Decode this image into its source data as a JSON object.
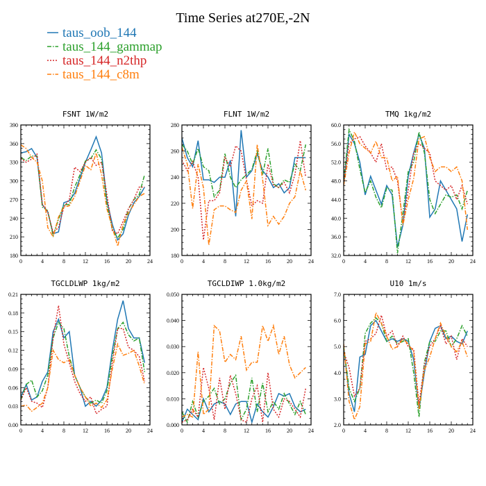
{
  "title": "Time Series at270E,-2N",
  "legend": [
    {
      "name": "taus_oob_144",
      "color": "#1f77b4",
      "dash": "solid"
    },
    {
      "name": "taus_144_gammap",
      "color": "#2ca02c",
      "dash": "dashdot"
    },
    {
      "name": "taus_144_n2thp",
      "color": "#d62728",
      "dash": "dot"
    },
    {
      "name": "taus_144_c8m",
      "color": "#ff7f0e",
      "dash": "dashdot"
    }
  ],
  "chart_data": [
    {
      "type": "line",
      "title": "FSNT   1W/m2",
      "xlim": [
        0,
        24
      ],
      "xticks": [
        "0",
        "4",
        "8",
        "12",
        "16",
        "20",
        "24"
      ],
      "ylim": [
        180,
        390
      ],
      "yticks": [
        "180",
        "210",
        "240",
        "270",
        "300",
        "330",
        "360",
        "390"
      ],
      "x": [
        0,
        1,
        2,
        3,
        4,
        5,
        6,
        7,
        8,
        9,
        10,
        11,
        12,
        13,
        14,
        15,
        16,
        17,
        18,
        19,
        20,
        21,
        22,
        23
      ],
      "series": [
        {
          "name": "taus_oob_144",
          "values": [
            345,
            347,
            352,
            338,
            262,
            250,
            215,
            218,
            265,
            268,
            280,
            305,
            330,
            350,
            371,
            345,
            268,
            230,
            205,
            215,
            245,
            265,
            275,
            290
          ]
        },
        {
          "name": "taus_144_gammap",
          "values": [
            337,
            333,
            340,
            340,
            258,
            252,
            212,
            238,
            262,
            262,
            290,
            310,
            332,
            336,
            350,
            335,
            262,
            222,
            208,
            222,
            255,
            270,
            278,
            310
          ]
        },
        {
          "name": "taus_144_n2thp",
          "values": [
            336,
            330,
            335,
            343,
            262,
            250,
            217,
            225,
            258,
            270,
            322,
            315,
            330,
            338,
            325,
            330,
            278,
            220,
            215,
            235,
            255,
            270,
            290,
            290
          ]
        },
        {
          "name": "taus_144_c8m",
          "values": [
            358,
            352,
            338,
            330,
            300,
            225,
            210,
            242,
            258,
            260,
            275,
            300,
            325,
            318,
            345,
            310,
            255,
            225,
            195,
            230,
            248,
            262,
            275,
            280
          ]
        }
      ]
    },
    {
      "type": "line",
      "title": "FLNT   1W/m2",
      "xlim": [
        0,
        24
      ],
      "xticks": [
        "0",
        "4",
        "8",
        "12",
        "16",
        "20",
        "24"
      ],
      "ylim": [
        180,
        280
      ],
      "yticks": [
        "180",
        "200",
        "220",
        "240",
        "260",
        "280"
      ],
      "x": [
        0,
        1,
        2,
        3,
        4,
        5,
        6,
        7,
        8,
        9,
        10,
        11,
        12,
        13,
        14,
        15,
        16,
        17,
        18,
        19,
        20,
        21,
        22,
        23
      ],
      "series": [
        {
          "name": "taus_oob_144",
          "values": [
            270,
            255,
            248,
            268,
            238,
            238,
            236,
            240,
            240,
            253,
            210,
            276,
            240,
            245,
            258,
            245,
            240,
            232,
            235,
            228,
            232,
            255,
            255,
            255
          ]
        },
        {
          "name": "taus_144_gammap",
          "values": [
            265,
            260,
            250,
            262,
            248,
            245,
            225,
            230,
            258,
            240,
            232,
            238,
            242,
            246,
            260,
            242,
            262,
            235,
            232,
            238,
            236,
            250,
            245,
            265
          ]
        },
        {
          "name": "taus_144_n2thp",
          "values": [
            253,
            245,
            252,
            240,
            192,
            222,
            222,
            228,
            255,
            248,
            264,
            260,
            238,
            218,
            222,
            220,
            250,
            234,
            232,
            236,
            228,
            242,
            268,
            240
          ]
        },
        {
          "name": "taus_144_c8m",
          "values": [
            263,
            250,
            216,
            250,
            232,
            188,
            215,
            218,
            218,
            215,
            213,
            230,
            237,
            208,
            265,
            238,
            203,
            210,
            204,
            210,
            220,
            225,
            245,
            230
          ]
        }
      ]
    },
    {
      "type": "line",
      "title": "TMQ   1kg/m2",
      "xlim": [
        0,
        24
      ],
      "xticks": [
        "0",
        "4",
        "8",
        "12",
        "16",
        "20",
        "24"
      ],
      "ylim": [
        32.0,
        60.0
      ],
      "yticks": [
        "32.0",
        "36.0",
        "40.0",
        "44.0",
        "48.0",
        "52.0",
        "56.0",
        "60.0"
      ],
      "x": [
        0,
        1,
        2,
        3,
        4,
        5,
        6,
        7,
        8,
        9,
        10,
        11,
        12,
        13,
        14,
        15,
        16,
        17,
        18,
        19,
        20,
        21,
        22,
        23
      ],
      "series": [
        {
          "name": "taus_oob_144",
          "values": [
            47.0,
            58.0,
            56.0,
            52.0,
            45.0,
            49.0,
            46.0,
            43.0,
            47.0,
            45.0,
            33.8,
            38.5,
            49.0,
            54.0,
            58.0,
            55.0,
            40.2,
            42.0,
            48.0,
            46.0,
            44.0,
            42.0,
            35.0,
            40.8
          ]
        },
        {
          "name": "taus_144_gammap",
          "values": [
            48.0,
            59.0,
            56.5,
            50.5,
            45.5,
            48.0,
            44.5,
            42.2,
            46.5,
            46.0,
            32.5,
            41.0,
            50.0,
            52.0,
            58.5,
            54.0,
            44.0,
            41.0,
            43.0,
            45.0,
            44.5,
            45.0,
            42.0,
            46.0
          ]
        },
        {
          "name": "taus_144_n2thp",
          "values": [
            47.5,
            56.0,
            57.0,
            57.5,
            55.5,
            54.0,
            52.0,
            56.0,
            50.5,
            51.0,
            48.0,
            39.0,
            46.0,
            54.0,
            56.0,
            55.0,
            54.0,
            48.0,
            47.0,
            46.0,
            47.0,
            44.0,
            47.0,
            43.0
          ]
        },
        {
          "name": "taus_144_c8m",
          "values": [
            47.0,
            54.0,
            58.5,
            56.0,
            55.0,
            54.0,
            56.5,
            53.0,
            53.0,
            48.0,
            49.0,
            38.5,
            44.0,
            48.5,
            57.0,
            57.5,
            53.0,
            50.0,
            51.0,
            51.0,
            50.0,
            51.0,
            48.0,
            37.5
          ]
        }
      ]
    },
    {
      "type": "line",
      "title": "TGCLDLWP   1kg/m2",
      "xlim": [
        0,
        24
      ],
      "xticks": [
        "0",
        "4",
        "8",
        "12",
        "16",
        "20",
        "24"
      ],
      "ylim": [
        0.0,
        0.21
      ],
      "yticks": [
        "0.00",
        "0.03",
        "0.06",
        "0.09",
        "0.12",
        "0.15",
        "0.18",
        "0.21"
      ],
      "x": [
        0,
        1,
        2,
        3,
        4,
        5,
        6,
        7,
        8,
        9,
        10,
        11,
        12,
        13,
        14,
        15,
        16,
        17,
        18,
        19,
        20,
        21,
        22,
        23
      ],
      "series": [
        {
          "name": "taus_oob_144",
          "values": [
            0.045,
            0.065,
            0.04,
            0.045,
            0.07,
            0.085,
            0.15,
            0.17,
            0.14,
            0.15,
            0.08,
            0.06,
            0.03,
            0.038,
            0.03,
            0.04,
            0.06,
            0.12,
            0.17,
            0.2,
            0.155,
            0.14,
            0.14,
            0.1
          ]
        },
        {
          "name": "taus_144_gammap",
          "values": [
            0.04,
            0.065,
            0.072,
            0.045,
            0.055,
            0.08,
            0.14,
            0.165,
            0.155,
            0.11,
            0.08,
            0.06,
            0.045,
            0.035,
            0.04,
            0.035,
            0.055,
            0.11,
            0.155,
            0.165,
            0.145,
            0.135,
            0.14,
            0.085
          ]
        },
        {
          "name": "taus_144_n2thp",
          "values": [
            0.04,
            0.06,
            0.038,
            0.035,
            0.028,
            0.06,
            0.14,
            0.192,
            0.13,
            0.1,
            0.07,
            0.05,
            0.038,
            0.045,
            0.018,
            0.025,
            0.03,
            0.1,
            0.155,
            0.155,
            0.125,
            0.12,
            0.11,
            0.07
          ]
        },
        {
          "name": "taus_144_c8m",
          "values": [
            0.03,
            0.032,
            0.022,
            0.028,
            0.035,
            0.06,
            0.12,
            0.105,
            0.1,
            0.105,
            0.08,
            0.06,
            0.045,
            0.03,
            0.035,
            0.028,
            0.04,
            0.09,
            0.13,
            0.112,
            0.115,
            0.12,
            0.095,
            0.065
          ]
        }
      ]
    },
    {
      "type": "line",
      "title": "TGCLDIWP   1.0kg/m2",
      "xlim": [
        0,
        24
      ],
      "xticks": [
        "0",
        "4",
        "8",
        "12",
        "16",
        "20",
        "24"
      ],
      "ylim": [
        0.0,
        0.05
      ],
      "yticks": [
        "0.000",
        "0.010",
        "0.020",
        "0.030",
        "0.040",
        "0.050"
      ],
      "x": [
        0,
        1,
        2,
        3,
        4,
        5,
        6,
        7,
        8,
        9,
        10,
        11,
        12,
        13,
        14,
        15,
        16,
        17,
        18,
        19,
        20,
        21,
        22,
        23
      ],
      "series": [
        {
          "name": "taus_oob_144",
          "values": [
            0.001,
            0.006,
            0.004,
            0.002,
            0.01,
            0.005,
            0.008,
            0.009,
            0.008,
            0.004,
            0.008,
            0.009,
            0.009,
            0.001,
            0.008,
            0.005,
            0.003,
            0.007,
            0.012,
            0.011,
            0.012,
            0.007,
            0.005,
            0.006
          ]
        },
        {
          "name": "taus_144_gammap",
          "values": [
            0.005,
            0.001,
            0.009,
            0.003,
            0.009,
            0.011,
            0.014,
            0.008,
            0.01,
            0.016,
            0.019,
            0.002,
            0.006,
            0.018,
            0.005,
            0.016,
            0.005,
            0.009,
            0.006,
            0.012,
            0.008,
            0.004,
            0.009,
            0.004
          ]
        },
        {
          "name": "taus_144_n2thp",
          "values": [
            0.001,
            0.002,
            0.006,
            0.003,
            0.022,
            0.014,
            0.002,
            0.018,
            0.006,
            0.019,
            0.012,
            0.002,
            0.001,
            0.01,
            0.015,
            0.001,
            0.02,
            0.006,
            0.003,
            0.01,
            0.009,
            0.006,
            0.003,
            0.014
          ]
        },
        {
          "name": "taus_144_c8m",
          "values": [
            0.003,
            0.004,
            0.003,
            0.028,
            0.004,
            0.006,
            0.038,
            0.036,
            0.024,
            0.027,
            0.025,
            0.034,
            0.021,
            0.024,
            0.024,
            0.038,
            0.032,
            0.038,
            0.027,
            0.034,
            0.023,
            0.018,
            0.02,
            0.022
          ]
        }
      ]
    },
    {
      "type": "line",
      "title": "U10   1m/s",
      "xlim": [
        0,
        24
      ],
      "xticks": [
        "0",
        "4",
        "8",
        "12",
        "16",
        "20",
        "24"
      ],
      "ylim": [
        2.0,
        7.0
      ],
      "yticks": [
        "2.0",
        "3.0",
        "4.0",
        "5.0",
        "6.0",
        "7.0"
      ],
      "x": [
        0,
        1,
        2,
        3,
        4,
        5,
        6,
        7,
        8,
        9,
        10,
        11,
        12,
        13,
        14,
        15,
        16,
        17,
        18,
        19,
        20,
        21,
        22,
        23
      ],
      "series": [
        {
          "name": "taus_oob_144",
          "values": [
            5.0,
            3.2,
            2.5,
            4.6,
            4.7,
            5.8,
            6.0,
            5.6,
            5.2,
            5.3,
            5.2,
            5.3,
            5.2,
            4.5,
            2.6,
            4.0,
            5.2,
            5.7,
            5.8,
            5.3,
            5.4,
            5.2,
            5.1,
            5.6
          ]
        },
        {
          "name": "taus_144_gammap",
          "values": [
            5.0,
            3.4,
            2.9,
            3.4,
            5.5,
            5.9,
            6.1,
            5.9,
            5.2,
            5.4,
            5.1,
            5.2,
            5.3,
            4.0,
            2.3,
            4.4,
            5.2,
            5.2,
            5.6,
            5.6,
            5.0,
            5.3,
            5.8,
            5.4
          ]
        },
        {
          "name": "taus_144_n2thp",
          "values": [
            4.8,
            4.2,
            3.1,
            3.4,
            5.2,
            5.3,
            5.5,
            6.2,
            5.4,
            5.6,
            5.0,
            5.4,
            5.0,
            4.9,
            2.8,
            4.3,
            5.0,
            5.3,
            5.8,
            5.1,
            5.4,
            4.5,
            5.3,
            5.0
          ]
        },
        {
          "name": "taus_144_c8m",
          "values": [
            5.1,
            2.9,
            2.2,
            2.7,
            5.1,
            5.2,
            6.3,
            5.9,
            5.4,
            4.9,
            5.0,
            5.3,
            5.1,
            4.8,
            2.6,
            4.1,
            4.6,
            5.3,
            5.9,
            5.4,
            5.0,
            4.8,
            5.2,
            4.6
          ]
        }
      ]
    }
  ]
}
